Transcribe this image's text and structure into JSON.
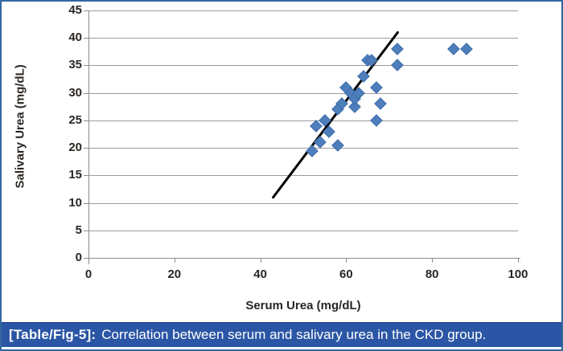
{
  "figure": {
    "caption_label": "[Table/Fig-5]:",
    "caption_text": "Correlation between serum and salivary urea in the CKD group."
  },
  "chart_data": {
    "type": "scatter",
    "title": "",
    "xlabel": "Serum Urea (mg/dL)",
    "ylabel": "Salivary Urea (mg/dL)",
    "xlim": [
      0,
      100
    ],
    "ylim": [
      0,
      45
    ],
    "x_ticks": [
      0,
      20,
      40,
      60,
      80,
      100
    ],
    "y_ticks": [
      0,
      5,
      10,
      15,
      20,
      25,
      30,
      35,
      40,
      45
    ],
    "grid": "horizontal",
    "legend": "none",
    "marker": "diamond",
    "marker_color": "#4E7EBC",
    "points": [
      [
        52,
        19.5
      ],
      [
        53,
        24
      ],
      [
        54,
        21
      ],
      [
        55,
        25
      ],
      [
        56,
        23
      ],
      [
        58,
        20.5
      ],
      [
        58,
        27
      ],
      [
        59,
        28
      ],
      [
        60,
        31
      ],
      [
        61,
        30
      ],
      [
        62,
        27.5
      ],
      [
        62,
        29
      ],
      [
        63,
        30
      ],
      [
        64,
        33
      ],
      [
        65,
        36
      ],
      [
        66,
        36
      ],
      [
        67,
        25
      ],
      [
        67,
        31
      ],
      [
        68,
        28
      ],
      [
        72,
        35
      ],
      [
        72,
        38
      ],
      [
        85,
        38
      ],
      [
        88,
        38
      ]
    ],
    "trendline": {
      "x1": 43,
      "y1": 11,
      "x2": 72,
      "y2": 41,
      "color": "#000000",
      "width": 3
    }
  },
  "colors": {
    "caption_background": "#2B56A5",
    "caption_text": "#ffffff",
    "frame_border": "#31689F",
    "gridline": "#9c9c9c",
    "axis_line": "#8c8c8c",
    "marker": "#4E7EBC",
    "trendline": "#000000"
  }
}
